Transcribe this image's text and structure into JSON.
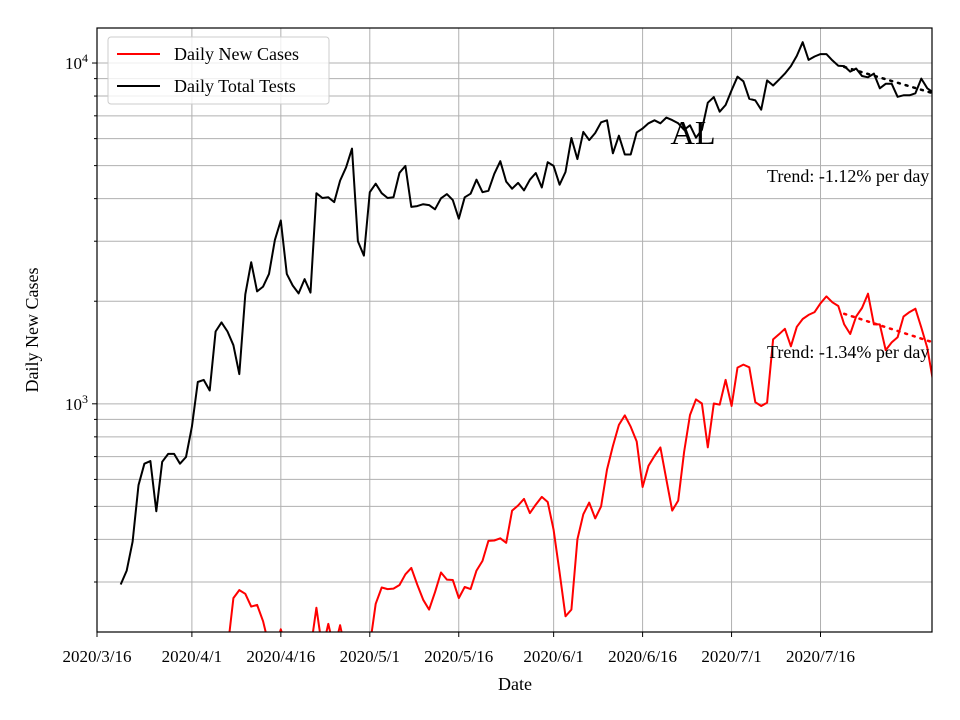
{
  "chart_data": {
    "type": "line",
    "title": "",
    "xlabel": "Date",
    "ylabel": "Daily New Cases",
    "yscale": "log",
    "ylim": [
      214,
      12670
    ],
    "x_start_date": "2020/3/16",
    "xlim_days": [
      0,
      140.8
    ],
    "grid": true,
    "legend_position": "top-left",
    "x_ticks": [
      {
        "day": 0,
        "label": "2020/3/16"
      },
      {
        "day": 16,
        "label": "2020/4/1"
      },
      {
        "day": 31,
        "label": "2020/4/16"
      },
      {
        "day": 46,
        "label": "2020/5/1"
      },
      {
        "day": 61,
        "label": "2020/5/16"
      },
      {
        "day": 77,
        "label": "2020/6/1"
      },
      {
        "day": 92,
        "label": "2020/6/16"
      },
      {
        "day": 107,
        "label": "2020/7/1"
      },
      {
        "day": 122,
        "label": "2020/7/16"
      }
    ],
    "y_ticks": [
      {
        "value": 1000,
        "base": "10",
        "exp": "3"
      },
      {
        "value": 10000,
        "base": "10",
        "exp": "4"
      }
    ],
    "series": [
      {
        "name": "Daily New Cases",
        "color": "#ff0000",
        "start_day": 22,
        "values": [
          190,
          269,
          284,
          277,
          254,
          257,
          230,
          195,
          190,
          218,
          190,
          185,
          185,
          185,
          190,
          252,
          190,
          226,
          190,
          224,
          185,
          185,
          185,
          185,
          195,
          259,
          289,
          286,
          287,
          294,
          316,
          330,
          295,
          266,
          249,
          280,
          320,
          305,
          304,
          269,
          290,
          286,
          324,
          346,
          396,
          397,
          403,
          391,
          486,
          503,
          526,
          478,
          506,
          533,
          515,
          427,
          320,
          238,
          249,
          400,
          474,
          513,
          461,
          500,
          641,
          752,
          867,
          925,
          857,
          775,
          570,
          658,
          703,
          745,
          601,
          486,
          520,
          722,
          927,
          1030,
          1002,
          745,
          1002,
          995,
          1175,
          985,
          1277,
          1303,
          1280,
          1011,
          985,
          1008,
          1545,
          1600,
          1660,
          1475,
          1683,
          1774,
          1824,
          1858,
          1972,
          2066,
          1986,
          1936,
          1710,
          1603,
          1803,
          1910,
          2104,
          1710,
          1710,
          1438,
          1514,
          1567,
          1803,
          1858,
          1901,
          1675,
          1459,
          1159
        ]
      },
      {
        "name": "Daily Total Tests",
        "color": "#000000",
        "start_day": 4,
        "values": [
          295,
          324,
          394,
          577,
          667,
          679,
          484,
          676,
          713,
          713,
          667,
          698,
          857,
          1159,
          1175,
          1094,
          1630,
          1733,
          1630,
          1486,
          1222,
          2094,
          2604,
          2138,
          2208,
          2406,
          3027,
          3451,
          2406,
          2224,
          2109,
          2323,
          2120,
          4150,
          4018,
          4036,
          3908,
          4519,
          4943,
          5610,
          2999,
          2723,
          4178,
          4426,
          4150,
          4018,
          4036,
          4764,
          4989,
          3784,
          3803,
          3852,
          3830,
          3723,
          4009,
          4125,
          3962,
          3493,
          4036,
          4135,
          4545,
          4178,
          4218,
          4730,
          5152,
          4487,
          4278,
          4450,
          4230,
          4545,
          4755,
          4312,
          5117,
          4989,
          4395,
          4790,
          6025,
          5224,
          6281,
          5940,
          6234,
          6699,
          6792,
          5433,
          6118,
          5390,
          5390,
          6260,
          6427,
          6653,
          6792,
          6653,
          6918,
          6800,
          6653,
          6368,
          6565,
          6039,
          6368,
          7650,
          7943,
          7197,
          7530,
          8318,
          9120,
          8836,
          7852,
          7770,
          7295,
          8892,
          8590,
          8933,
          9311,
          9795,
          10490,
          11510,
          10210,
          10450,
          10620,
          10620,
          10180,
          9820,
          9795,
          9440,
          9640,
          9160,
          9080,
          9311,
          8430,
          8690,
          8690,
          7960,
          8040,
          8040,
          8150,
          9000,
          8430,
          8200
        ]
      }
    ],
    "trend_lines": [
      {
        "series": "Daily Total Tests",
        "color": "#000000",
        "start_day": 126,
        "end_day": 141,
        "start_value": 9740,
        "end_value": 8150,
        "label": "Trend: -1.12% per day"
      },
      {
        "series": "Daily New Cases",
        "color": "#ff0000",
        "start_day": 126,
        "end_day": 141,
        "start_value": 1837,
        "end_value": 1514,
        "label": "Trend: -1.34% per day"
      }
    ],
    "annotation": "AL"
  }
}
